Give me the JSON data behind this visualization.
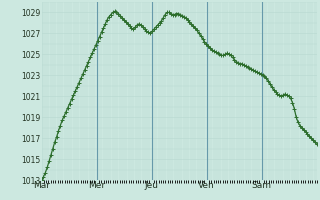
{
  "bg_color": "#cce8e0",
  "line_color": "#2d6e2d",
  "marker": "+",
  "marker_size": 2.5,
  "line_width": 0.9,
  "ylim": [
    1013,
    1030
  ],
  "yticks": [
    1013,
    1015,
    1017,
    1019,
    1021,
    1023,
    1025,
    1027,
    1029
  ],
  "xtick_labels": [
    "Mar",
    "Mer",
    "Jeu",
    "Ven",
    "Sam"
  ],
  "grid_color": "#b8d8d0",
  "vline_color": "#6699aa",
  "n_days": 5,
  "pressure": [
    1013.0,
    1013.3,
    1013.7,
    1014.2,
    1014.8,
    1015.4,
    1016.0,
    1016.6,
    1017.1,
    1017.7,
    1018.2,
    1018.7,
    1019.1,
    1019.5,
    1019.9,
    1020.3,
    1020.7,
    1021.1,
    1021.5,
    1021.9,
    1022.3,
    1022.7,
    1023.1,
    1023.5,
    1023.9,
    1024.3,
    1024.7,
    1025.1,
    1025.5,
    1025.9,
    1026.3,
    1026.7,
    1027.1,
    1027.5,
    1027.9,
    1028.3,
    1028.6,
    1028.8,
    1029.0,
    1029.1,
    1029.0,
    1028.9,
    1028.7,
    1028.5,
    1028.3,
    1028.1,
    1027.9,
    1027.7,
    1027.5,
    1027.4,
    1027.6,
    1027.8,
    1027.9,
    1027.8,
    1027.6,
    1027.4,
    1027.2,
    1027.1,
    1027.0,
    1027.2,
    1027.4,
    1027.6,
    1027.8,
    1028.0,
    1028.2,
    1028.5,
    1028.8,
    1029.0,
    1029.0,
    1028.9,
    1028.8,
    1028.8,
    1028.9,
    1028.9,
    1028.8,
    1028.7,
    1028.6,
    1028.5,
    1028.3,
    1028.1,
    1027.9,
    1027.7,
    1027.5,
    1027.3,
    1027.0,
    1026.8,
    1026.5,
    1026.2,
    1026.0,
    1025.8,
    1025.6,
    1025.4,
    1025.3,
    1025.2,
    1025.1,
    1025.0,
    1024.9,
    1024.9,
    1025.0,
    1025.1,
    1025.0,
    1024.9,
    1024.7,
    1024.5,
    1024.3,
    1024.2,
    1024.1,
    1024.1,
    1024.0,
    1023.9,
    1023.8,
    1023.7,
    1023.6,
    1023.5,
    1023.4,
    1023.3,
    1023.2,
    1023.1,
    1023.0,
    1022.9,
    1022.7,
    1022.5,
    1022.2,
    1021.9,
    1021.6,
    1021.4,
    1021.2,
    1021.1,
    1021.0,
    1021.1,
    1021.2,
    1021.1,
    1021.0,
    1020.8,
    1020.4,
    1019.8,
    1019.0,
    1018.5,
    1018.2,
    1018.0,
    1017.8,
    1017.6,
    1017.4,
    1017.2,
    1017.0,
    1016.8,
    1016.6,
    1016.4
  ]
}
